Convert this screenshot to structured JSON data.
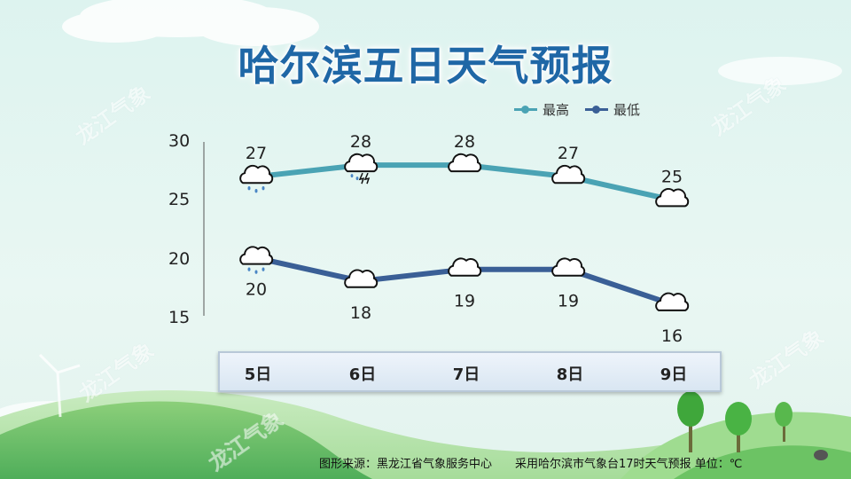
{
  "title": "哈尔滨五日天气预报",
  "legend": {
    "high_label": "最高",
    "low_label": "最低"
  },
  "watermark_text": "龙江气象",
  "footer": {
    "source": "图形来源：黑龙江省气象服务中心",
    "note": "采用哈尔滨市气象台17时天气预报 单位：℃"
  },
  "colors": {
    "high": "#4aa3b4",
    "low": "#3a5f96",
    "title": "#1f67a6"
  },
  "chart_data": {
    "type": "line",
    "categories": [
      "5日",
      "6日",
      "7日",
      "8日",
      "9日"
    ],
    "series": [
      {
        "name": "最高",
        "values": [
          27,
          28,
          28,
          27,
          25
        ]
      },
      {
        "name": "最低",
        "values": [
          20,
          18,
          19,
          19,
          16
        ]
      }
    ],
    "yticks": [
      30,
      25,
      20,
      15
    ],
    "ylim": [
      15,
      30
    ],
    "weather_icons": {
      "最高": [
        "rain-cloud-icon",
        "thunderstorm-cloud-icon",
        "cloud-icon",
        "cloud-icon",
        "cloud-icon"
      ],
      "最低": [
        "rain-cloud-icon",
        "cloud-icon",
        "cloud-icon",
        "cloud-icon",
        "cloud-icon"
      ]
    },
    "legend_position": "top-right",
    "grid": false
  }
}
